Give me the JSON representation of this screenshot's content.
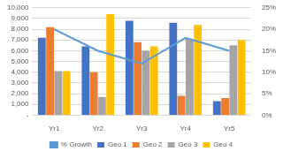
{
  "chart_data": {
    "type": "bar",
    "categories": [
      "Yr1",
      "Yr2",
      "Yr3",
      "Yr4",
      "Yr5"
    ],
    "series": [
      {
        "name": "Geo 1",
        "type": "bar",
        "color": "#4472c4",
        "values": [
          7200,
          6400,
          8800,
          8600,
          1300
        ]
      },
      {
        "name": "Geo 2",
        "type": "bar",
        "color": "#ed7d31",
        "values": [
          8200,
          4000,
          6800,
          1800,
          1600
        ]
      },
      {
        "name": "Geo 3",
        "type": "bar",
        "color": "#a5a5a5",
        "values": [
          4100,
          1700,
          6000,
          7100,
          6500
        ]
      },
      {
        "name": "Geo 4",
        "type": "bar",
        "color": "#ffc000",
        "values": [
          4100,
          9400,
          6400,
          8400,
          7000
        ]
      },
      {
        "name": "% Growth",
        "type": "line",
        "axis": "y2",
        "marker": "none",
        "color": "#5b9bd5",
        "values": [
          20,
          15,
          12,
          18,
          15
        ]
      }
    ],
    "ylim": [
      0,
      10000
    ],
    "yticks": [
      {
        "value": 0,
        "label": "-"
      },
      {
        "value": 1000,
        "label": "1,000"
      },
      {
        "value": 2000,
        "label": "2,000"
      },
      {
        "value": 3000,
        "label": "3,000"
      },
      {
        "value": 4000,
        "label": "4,000"
      },
      {
        "value": 5000,
        "label": "5,000"
      },
      {
        "value": 6000,
        "label": "6,000"
      },
      {
        "value": 7000,
        "label": "7,000"
      },
      {
        "value": 8000,
        "label": "8,000"
      },
      {
        "value": 9000,
        "label": "9,000"
      },
      {
        "value": 10000,
        "label": "10,000"
      }
    ],
    "y2lim": [
      0,
      25
    ],
    "y2ticks": [
      {
        "value": 0,
        "label": "0%"
      },
      {
        "value": 5,
        "label": "5%"
      },
      {
        "value": 10,
        "label": "10%"
      },
      {
        "value": 15,
        "label": "15%"
      },
      {
        "value": 20,
        "label": "20%"
      },
      {
        "value": 25,
        "label": "25%"
      }
    ],
    "grid": true,
    "legend": "bottom"
  }
}
